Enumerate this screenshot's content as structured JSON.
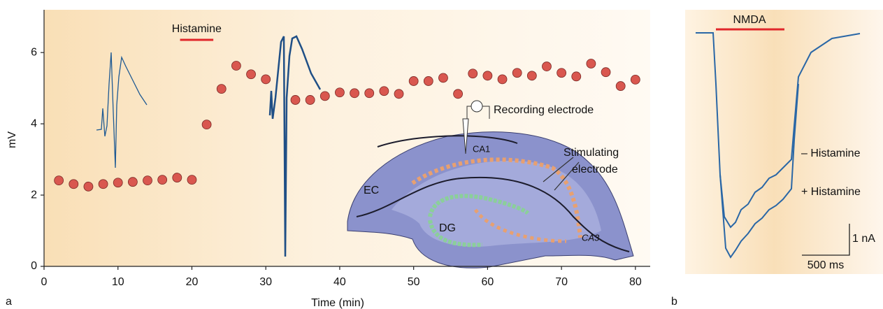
{
  "chart_data": {
    "type": "scatter",
    "panel_label": "a",
    "x_label": "Time (min)",
    "y_label": "mV",
    "x": [
      2,
      4,
      6,
      8,
      10,
      12,
      14,
      16,
      18,
      20,
      22,
      24,
      26,
      28,
      30,
      34,
      36,
      38,
      40,
      42,
      44,
      46,
      48,
      50,
      52,
      54,
      56,
      58,
      60,
      62,
      64,
      66,
      68,
      70,
      72,
      74,
      76,
      78,
      80
    ],
    "values": [
      2.41,
      2.31,
      2.24,
      2.31,
      2.35,
      2.37,
      2.41,
      2.43,
      2.49,
      2.43,
      3.98,
      4.98,
      5.63,
      5.39,
      5.25,
      4.67,
      4.67,
      4.78,
      4.88,
      4.86,
      4.86,
      4.92,
      4.84,
      5.2,
      5.2,
      5.29,
      4.84,
      5.41,
      5.35,
      5.25,
      5.43,
      5.35,
      5.61,
      5.43,
      5.33,
      5.69,
      5.45,
      5.06,
      5.24
    ],
    "color": "#d9574f",
    "xlim": [
      0,
      82
    ],
    "xticks": [
      0,
      10,
      20,
      30,
      40,
      50,
      60,
      70,
      80
    ],
    "ylim": [
      0,
      7.2
    ],
    "yticks": [
      0,
      2,
      4,
      6
    ],
    "treatment": {
      "label": "Histamine",
      "x": [
        18.4,
        22.9
      ],
      "color": "#e0262a"
    }
  },
  "inset": {
    "recording": "Recording electrode",
    "stimulating": [
      "Stimulating",
      "electrode"
    ],
    "ca1": "CA1",
    "ca3": "CA3",
    "ec": "EC",
    "dg": "DG"
  },
  "panel_b": {
    "panel_label": "b",
    "stimulus": "NMDA",
    "minus": "– Histamine",
    "plus": "+ Histamine",
    "scale_current": "1 nA",
    "scale_time": "500 ms"
  }
}
